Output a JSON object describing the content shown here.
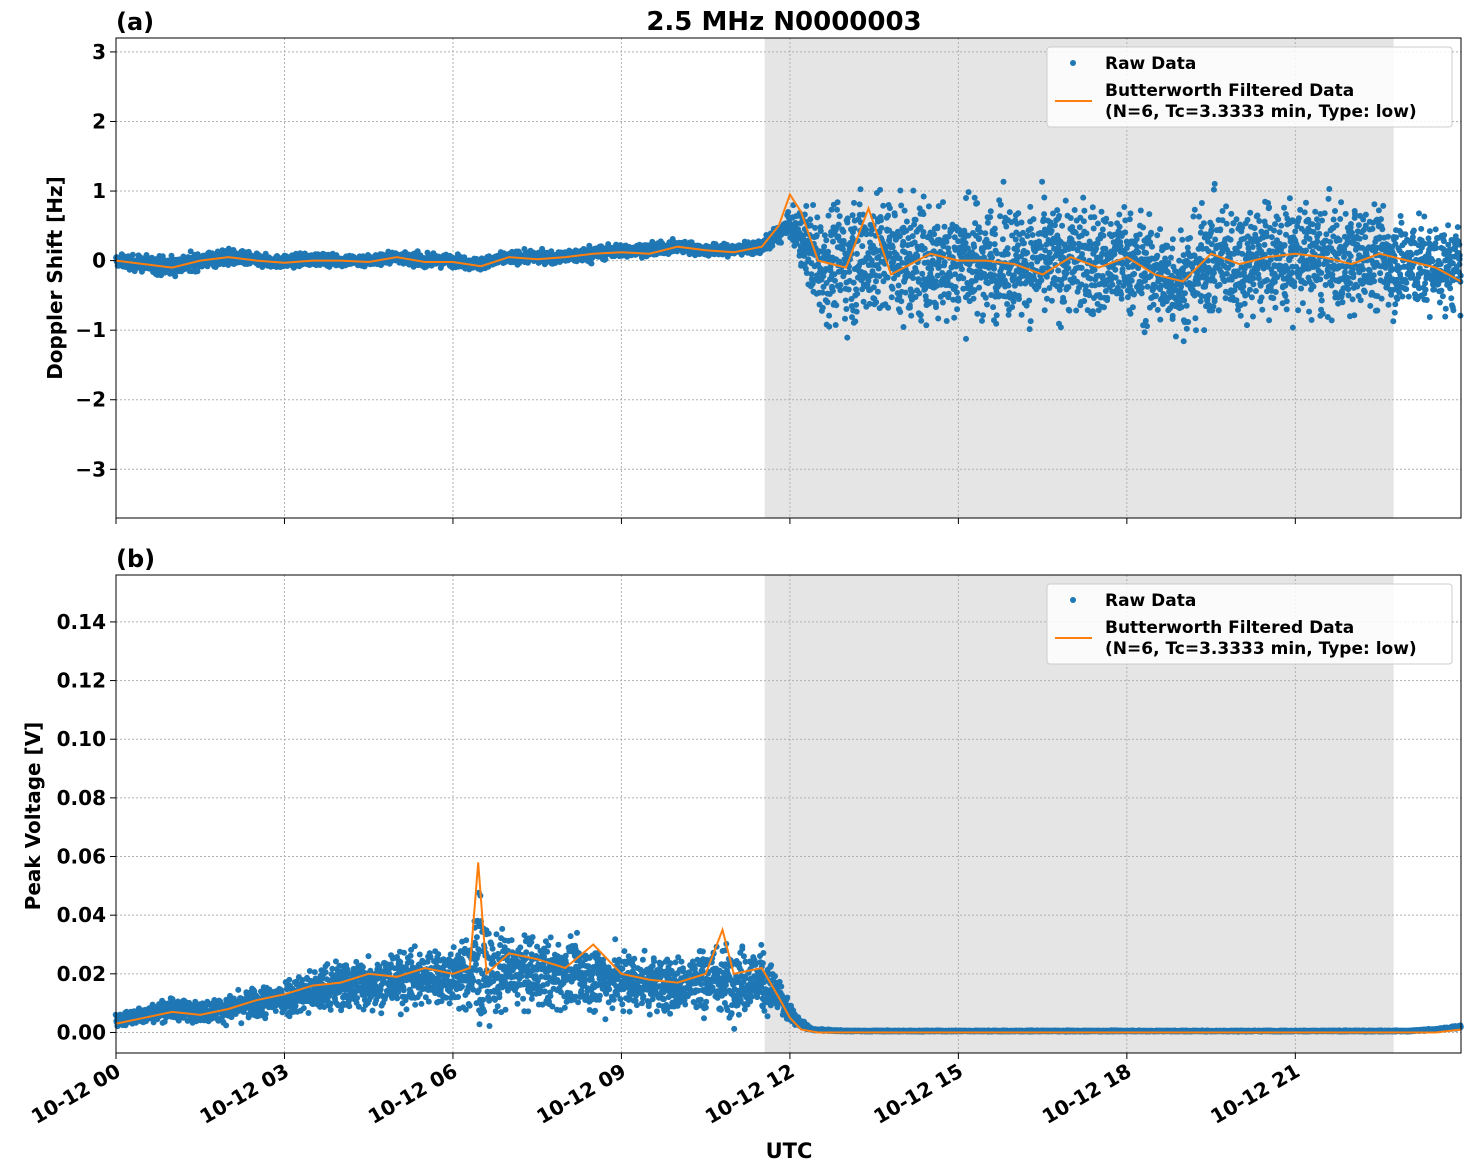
{
  "figure": {
    "title": "2.5 MHz N0000003",
    "xlabel": "UTC"
  },
  "colors": {
    "raw": "#1f77b4",
    "filtered": "#ff7f0e",
    "shade": "#e5e5e5",
    "grid": "#b0b0b0"
  },
  "legend": {
    "raw_label": "Raw Data",
    "filtered_line1": "Butterworth Filtered Data",
    "filtered_line2": "(N=6, Tc=3.3333 min, Type: low)"
  },
  "chart_data": [
    {
      "panel_label": "(a)",
      "type": "scatter",
      "ylabel": "Doppler Shift [Hz]",
      "xlim_hours": [
        0,
        23.95
      ],
      "ylim": [
        -3.7,
        3.2
      ],
      "yticks": [
        -3,
        -2,
        -1,
        0,
        1,
        2,
        3
      ],
      "ytick_labels": [
        "−3",
        "−2",
        "−1",
        "0",
        "1",
        "2",
        "3"
      ],
      "shaded_span_hours": [
        11.55,
        22.75
      ],
      "grid": true,
      "legend_position": "top-right",
      "series": [
        {
          "name": "Raw Data",
          "style": "points",
          "x_hours": [
            0,
            0.5,
            1,
            1.5,
            2,
            2.5,
            3,
            3.5,
            4,
            4.5,
            5,
            5.5,
            6,
            6.5,
            7,
            7.5,
            8,
            8.5,
            9,
            9.5,
            10,
            10.5,
            11,
            11.5,
            12,
            12.5,
            13,
            13.5,
            14,
            14.5,
            15,
            15.5,
            16,
            16.5,
            17,
            17.5,
            18,
            18.5,
            19,
            19.5,
            20,
            20.5,
            21,
            21.5,
            22,
            22.5,
            23,
            23.5,
            23.95
          ],
          "center": [
            0,
            -0.05,
            -0.08,
            0,
            0.05,
            0,
            -0.02,
            0.02,
            0,
            0,
            0.05,
            0,
            0,
            -0.05,
            0.05,
            0.05,
            0.05,
            0.1,
            0.15,
            0.15,
            0.2,
            0.15,
            0.15,
            0.2,
            0.5,
            0,
            0,
            0.1,
            0,
            -0.05,
            0,
            0,
            0,
            -0.05,
            0.05,
            -0.05,
            0,
            -0.2,
            -0.3,
            0,
            0,
            0.05,
            0.05,
            0,
            0,
            0.05,
            -0.05,
            -0.1,
            -0.1
          ],
          "spread": [
            0.15,
            0.2,
            0.25,
            0.2,
            0.2,
            0.15,
            0.15,
            0.15,
            0.15,
            0.15,
            0.15,
            0.15,
            0.15,
            0.15,
            0.15,
            0.15,
            0.15,
            0.2,
            0.15,
            0.15,
            0.15,
            0.15,
            0.15,
            0.15,
            0.3,
            1.4,
            1.5,
            1.6,
            1.5,
            1.5,
            1.5,
            1.4,
            1.4,
            1.4,
            1.4,
            1.4,
            1.3,
            1.3,
            1.3,
            1.4,
            1.4,
            1.4,
            1.4,
            1.4,
            1.3,
            1.3,
            1.2,
            1.1,
            1.0
          ]
        },
        {
          "name": "Butterworth Filtered Data",
          "style": "line",
          "x_hours": [
            0,
            0.5,
            1,
            1.5,
            2,
            2.5,
            3,
            3.5,
            4,
            4.5,
            5,
            5.5,
            6,
            6.5,
            7,
            7.5,
            8,
            8.5,
            9,
            9.5,
            10,
            10.5,
            11,
            11.5,
            11.8,
            12.0,
            12.2,
            12.5,
            13,
            13.4,
            13.8,
            14.5,
            15,
            15.5,
            16,
            16.5,
            17,
            17.5,
            18,
            18.5,
            19,
            19.5,
            20,
            20.5,
            21,
            21.5,
            22,
            22.5,
            23,
            23.5,
            23.95
          ],
          "y": [
            0,
            -0.05,
            -0.1,
            0,
            0.05,
            0,
            -0.03,
            0,
            0,
            -0.02,
            0.05,
            -0.02,
            -0.02,
            -0.08,
            0.05,
            0.02,
            0.05,
            0.1,
            0.12,
            0.1,
            0.2,
            0.15,
            0.12,
            0.2,
            0.5,
            0.95,
            0.7,
            0,
            -0.1,
            0.75,
            -0.2,
            0.1,
            0,
            0,
            -0.05,
            -0.2,
            0.05,
            -0.1,
            0.05,
            -0.2,
            -0.3,
            0.1,
            -0.05,
            0.05,
            0.1,
            0.05,
            -0.05,
            0.1,
            0,
            -0.1,
            -0.3
          ]
        }
      ]
    },
    {
      "panel_label": "(b)",
      "type": "scatter",
      "ylabel": "Peak Voltage [V]",
      "xlim_hours": [
        0,
        23.95
      ],
      "ylim": [
        -0.007,
        0.156
      ],
      "yticks": [
        0.0,
        0.02,
        0.04,
        0.06,
        0.08,
        0.1,
        0.12,
        0.14
      ],
      "ytick_labels": [
        "0.00",
        "0.02",
        "0.04",
        "0.06",
        "0.08",
        "0.10",
        "0.12",
        "0.14"
      ],
      "xticks_hours": [
        0,
        3,
        6,
        9,
        12,
        15,
        18,
        21
      ],
      "xtick_labels": [
        "10-12 00",
        "10-12 03",
        "10-12 06",
        "10-12 09",
        "10-12 12",
        "10-12 15",
        "10-12 18",
        "10-12 21"
      ],
      "shaded_span_hours": [
        11.55,
        22.75
      ],
      "grid": true,
      "legend_position": "top-right",
      "series": [
        {
          "name": "Raw Data",
          "style": "points",
          "x_hours": [
            0,
            0.5,
            1,
            1.5,
            2,
            2.5,
            3,
            3.5,
            4,
            4.5,
            5,
            5.5,
            6,
            6.3,
            6.45,
            6.6,
            7,
            7.5,
            8,
            8.5,
            9,
            9.5,
            10,
            10.5,
            11,
            11.5,
            11.8,
            12.1,
            12.4,
            13,
            14,
            15,
            16,
            17,
            18,
            19,
            20,
            21,
            22,
            23,
            23.5,
            23.95
          ],
          "center": [
            0.004,
            0.006,
            0.008,
            0.007,
            0.008,
            0.01,
            0.012,
            0.014,
            0.016,
            0.017,
            0.018,
            0.019,
            0.019,
            0.02,
            0.025,
            0.02,
            0.021,
            0.02,
            0.02,
            0.019,
            0.018,
            0.017,
            0.016,
            0.018,
            0.018,
            0.018,
            0.012,
            0.004,
            0.001,
            0.0005,
            0.0005,
            0.0005,
            0.0005,
            0.0005,
            0.0005,
            0.0005,
            0.0005,
            0.0005,
            0.0005,
            0.0005,
            0.001,
            0.002
          ],
          "spread": [
            0.004,
            0.005,
            0.006,
            0.006,
            0.007,
            0.009,
            0.011,
            0.013,
            0.015,
            0.016,
            0.016,
            0.017,
            0.017,
            0.02,
            0.05,
            0.025,
            0.022,
            0.02,
            0.02,
            0.019,
            0.018,
            0.017,
            0.016,
            0.02,
            0.02,
            0.018,
            0.012,
            0.003,
            0.0005,
            0.0003,
            0.0003,
            0.0003,
            0.0003,
            0.0003,
            0.0003,
            0.0003,
            0.0003,
            0.0003,
            0.0003,
            0.0003,
            0.0005,
            0.001
          ]
        },
        {
          "name": "Butterworth Filtered Data",
          "style": "line",
          "x_hours": [
            0,
            0.5,
            1,
            1.5,
            2,
            2.5,
            3,
            3.5,
            4,
            4.5,
            5,
            5.5,
            6,
            6.3,
            6.45,
            6.6,
            7,
            7.5,
            8,
            8.5,
            9,
            9.5,
            10,
            10.5,
            10.8,
            11,
            11.5,
            11.8,
            12.0,
            12.2,
            12.5,
            13,
            14,
            15,
            16,
            17,
            18,
            19,
            20,
            21,
            22,
            23,
            23.5,
            23.95
          ],
          "y": [
            0.003,
            0.005,
            0.007,
            0.006,
            0.008,
            0.011,
            0.013,
            0.016,
            0.017,
            0.02,
            0.019,
            0.022,
            0.02,
            0.022,
            0.058,
            0.02,
            0.027,
            0.025,
            0.022,
            0.03,
            0.02,
            0.018,
            0.017,
            0.02,
            0.035,
            0.02,
            0.022,
            0.012,
            0.005,
            0.001,
            0,
            0,
            0,
            0,
            0,
            0,
            0,
            0,
            0,
            0,
            0,
            0,
            0,
            0.001
          ]
        }
      ]
    }
  ]
}
